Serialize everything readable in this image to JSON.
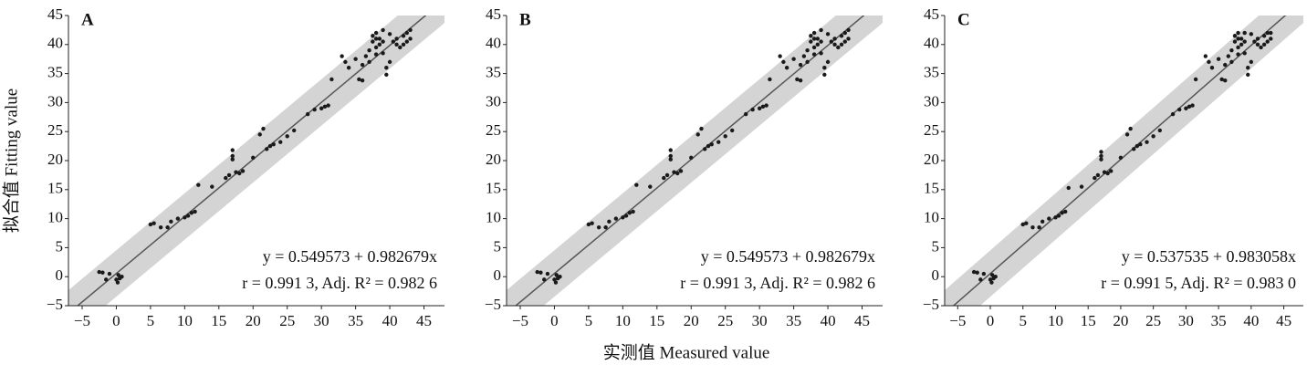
{
  "x_label": "实测值 Measured value",
  "y_label": "拟合值 Fitting value",
  "chart_data": [
    {
      "type": "scatter",
      "label": "A",
      "equation": "y = 0.549573 + 0.982679x",
      "stats": "r = 0.991 3, Adj. R² = 0.982 6",
      "fit": {
        "intercept": 0.549573,
        "slope": 0.982679
      },
      "band": 4,
      "color": "#1a1a1a",
      "band_color": "#d4d4d4",
      "line_color": "#555555",
      "xlim": [
        -7,
        48
      ],
      "ylim": [
        -5,
        45
      ],
      "xticks": [
        {
          "value": -5,
          "label": "−5"
        },
        0,
        5,
        10,
        15,
        20,
        25,
        30,
        35,
        40,
        45
      ],
      "yticks": [
        {
          "value": -5,
          "label": "−5"
        },
        0,
        5,
        10,
        15,
        20,
        25,
        30,
        35,
        40,
        45
      ],
      "x": [
        -2.5,
        -2,
        -1.5,
        -1,
        0,
        0.2,
        0.5,
        0.8,
        0.3,
        5,
        5.5,
        6.5,
        7.5,
        8,
        9,
        10,
        10.5,
        11,
        11.5,
        12,
        14,
        16,
        16.5,
        17,
        17,
        17,
        17.5,
        18,
        18.5,
        20,
        21,
        21.5,
        22,
        22.5,
        23,
        24,
        25,
        26,
        28,
        29,
        30,
        30.5,
        31,
        31.5,
        33,
        33.5,
        34,
        35,
        35.5,
        36,
        36.5,
        37,
        37.5,
        37.5,
        38,
        38,
        38.5,
        38.5,
        39,
        39,
        39.5,
        39.5,
        40,
        40.5,
        41,
        41.5,
        42,
        42,
        42.5,
        43,
        43,
        42.5,
        36,
        37,
        38,
        40,
        39,
        38,
        41
      ],
      "y": [
        0.8,
        0.7,
        -0.5,
        0.5,
        -0.5,
        -1,
        -0.3,
        0,
        0.3,
        9,
        9.2,
        8.5,
        8.5,
        9.5,
        10,
        10.2,
        10.5,
        11,
        11.2,
        15.8,
        15.5,
        17,
        17.5,
        21.8,
        20.8,
        20.2,
        18,
        17.8,
        18.2,
        20.5,
        24.5,
        25.5,
        22,
        22.5,
        22.8,
        23.2,
        24.2,
        25.2,
        28,
        28.8,
        29,
        29.3,
        29.5,
        34,
        38,
        37,
        36,
        37.5,
        34,
        33.8,
        38,
        39,
        40.5,
        41.5,
        39.5,
        42,
        40,
        41,
        40.5,
        38.5,
        36,
        34.8,
        37,
        40.5,
        41,
        39.5,
        40,
        41.5,
        42,
        41,
        42.5,
        40.5,
        36.5,
        37,
        38.3,
        41.8,
        42.5,
        41,
        40
      ]
    },
    {
      "type": "scatter",
      "label": "B",
      "equation": "y = 0.549573 + 0.982679x",
      "stats": "r = 0.991 3, Adj. R² = 0.982 6",
      "fit": {
        "intercept": 0.549573,
        "slope": 0.982679
      },
      "band": 4,
      "color": "#1a1a1a",
      "band_color": "#d4d4d4",
      "line_color": "#555555",
      "xlim": [
        -7,
        48
      ],
      "ylim": [
        -5,
        45
      ],
      "xticks": [
        {
          "value": -5,
          "label": "−5"
        },
        0,
        5,
        10,
        15,
        20,
        25,
        30,
        35,
        40,
        45
      ],
      "yticks": [
        {
          "value": -5,
          "label": "−5"
        },
        0,
        5,
        10,
        15,
        20,
        25,
        30,
        35,
        40,
        45
      ],
      "x": [
        -2.5,
        -2,
        -1.5,
        -1,
        0,
        0.2,
        0.5,
        0.8,
        0.3,
        5,
        5.5,
        6.5,
        7.5,
        8,
        9,
        10,
        10.5,
        11,
        11.5,
        12,
        14,
        16,
        16.5,
        17,
        17,
        17,
        17.5,
        18,
        18.5,
        20,
        21,
        21.5,
        22,
        22.5,
        23,
        24,
        25,
        26,
        28,
        29,
        30,
        30.5,
        31,
        31.5,
        33,
        33.5,
        34,
        35,
        35.5,
        36,
        36.5,
        37,
        37.5,
        37.5,
        38,
        38,
        38.5,
        38.5,
        39,
        39,
        39.5,
        39.5,
        40,
        40.5,
        41,
        41.5,
        42,
        42,
        42.5,
        43,
        43,
        42.5,
        36,
        37,
        38,
        40,
        39,
        38,
        41
      ],
      "y": [
        0.8,
        0.7,
        -0.5,
        0.5,
        -0.5,
        -1,
        -0.3,
        0,
        0.3,
        9,
        9.2,
        8.5,
        8.5,
        9.5,
        10,
        10.2,
        10.5,
        11,
        11.2,
        15.8,
        15.5,
        17,
        17.5,
        21.8,
        20.8,
        20.2,
        18,
        17.8,
        18.2,
        20.5,
        24.5,
        25.5,
        22,
        22.5,
        22.8,
        23.2,
        24.2,
        25.2,
        28,
        28.8,
        29,
        29.3,
        29.5,
        34,
        38,
        37,
        36,
        37.5,
        34,
        33.8,
        38,
        39,
        40.5,
        41.5,
        39.5,
        42,
        40,
        41,
        40.5,
        38.5,
        36,
        34.8,
        37,
        40.5,
        41,
        39.5,
        40,
        41.5,
        42,
        41,
        42.5,
        40.5,
        36.5,
        37,
        38.3,
        41.8,
        42.5,
        41,
        40
      ]
    },
    {
      "type": "scatter",
      "label": "C",
      "equation": "y = 0.537535 + 0.983058x",
      "stats": "r = 0.991 5, Adj. R² = 0.983 0",
      "fit": {
        "intercept": 0.537535,
        "slope": 0.983058
      },
      "band": 4,
      "color": "#1a1a1a",
      "band_color": "#d4d4d4",
      "line_color": "#555555",
      "xlim": [
        -7,
        48
      ],
      "ylim": [
        -5,
        45
      ],
      "xticks": [
        {
          "value": -5,
          "label": "−5"
        },
        0,
        5,
        10,
        15,
        20,
        25,
        30,
        35,
        40,
        45
      ],
      "yticks": [
        {
          "value": -5,
          "label": "−5"
        },
        0,
        5,
        10,
        15,
        20,
        25,
        30,
        35,
        40,
        45
      ],
      "x": [
        -2.5,
        -2,
        -1.5,
        -1,
        0,
        0.2,
        0.5,
        0.8,
        0.3,
        5,
        5.5,
        6.5,
        7.5,
        8,
        9,
        10,
        10.5,
        11,
        11.5,
        12,
        14,
        16,
        16.5,
        17,
        17,
        17,
        17.5,
        18,
        18.5,
        20,
        21,
        21.5,
        22,
        22.5,
        23,
        24,
        25,
        26,
        28,
        29,
        30,
        30.5,
        31,
        31.5,
        33,
        33.5,
        34,
        35,
        35.5,
        36,
        36.5,
        37,
        37.5,
        37.5,
        38,
        38,
        38.5,
        38.5,
        39,
        39,
        39.5,
        39.5,
        40,
        40.5,
        41,
        41.5,
        42,
        42,
        42.5,
        43,
        43,
        42.5,
        36,
        37,
        38,
        40,
        39,
        38,
        41
      ],
      "y": [
        0.8,
        0.7,
        -0.5,
        0.5,
        -0.5,
        -1,
        -0.3,
        0,
        0.3,
        9,
        9.2,
        8.5,
        8.5,
        9.5,
        10,
        10.2,
        10.5,
        11,
        11.2,
        15.3,
        15.5,
        17,
        17.5,
        21.5,
        20.8,
        20.2,
        18,
        17.8,
        18.2,
        20.5,
        24.5,
        25.5,
        22,
        22.5,
        22.8,
        23.2,
        24.2,
        25.2,
        28,
        28.8,
        29,
        29.3,
        29.5,
        34,
        38,
        37,
        36,
        37.5,
        34,
        33.8,
        38,
        39,
        40.5,
        41.5,
        39.5,
        42,
        40,
        41,
        40.5,
        38.5,
        36,
        34.8,
        37,
        40.5,
        41,
        39.5,
        40,
        41.5,
        42,
        41,
        42,
        40.5,
        36.5,
        37,
        38.3,
        41.8,
        42,
        41,
        40
      ]
    }
  ]
}
